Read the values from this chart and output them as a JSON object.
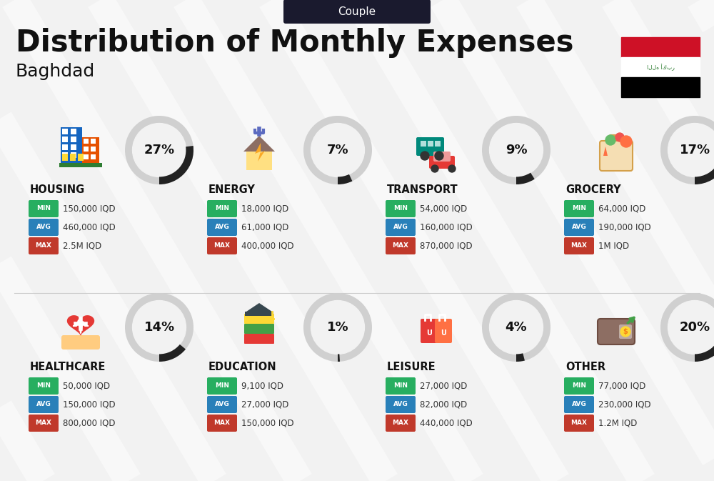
{
  "title": "Distribution of Monthly Expenses",
  "subtitle": "Couple",
  "city": "Baghdad",
  "bg_color": "#f2f2f2",
  "categories": [
    {
      "name": "HOUSING",
      "pct": 27,
      "min": "150,000 IQD",
      "avg": "460,000 IQD",
      "max": "2.5M IQD",
      "row": 0,
      "col": 0
    },
    {
      "name": "ENERGY",
      "pct": 7,
      "min": "18,000 IQD",
      "avg": "61,000 IQD",
      "max": "400,000 IQD",
      "row": 0,
      "col": 1
    },
    {
      "name": "TRANSPORT",
      "pct": 9,
      "min": "54,000 IQD",
      "avg": "160,000 IQD",
      "max": "870,000 IQD",
      "row": 0,
      "col": 2
    },
    {
      "name": "GROCERY",
      "pct": 17,
      "min": "64,000 IQD",
      "avg": "190,000 IQD",
      "max": "1M IQD",
      "row": 0,
      "col": 3
    },
    {
      "name": "HEALTHCARE",
      "pct": 14,
      "min": "50,000 IQD",
      "avg": "150,000 IQD",
      "max": "800,000 IQD",
      "row": 1,
      "col": 0
    },
    {
      "name": "EDUCATION",
      "pct": 1,
      "min": "9,100 IQD",
      "avg": "27,000 IQD",
      "max": "150,000 IQD",
      "row": 1,
      "col": 1
    },
    {
      "name": "LEISURE",
      "pct": 4,
      "min": "27,000 IQD",
      "avg": "82,000 IQD",
      "max": "440,000 IQD",
      "row": 1,
      "col": 2
    },
    {
      "name": "OTHER",
      "pct": 20,
      "min": "77,000 IQD",
      "avg": "230,000 IQD",
      "max": "1.2M IQD",
      "row": 1,
      "col": 3
    }
  ],
  "min_color": "#27ae60",
  "avg_color": "#2980b9",
  "max_color": "#c0392b",
  "title_color": "#111111",
  "category_color": "#111111",
  "pct_color": "#111111",
  "circle_bg": "#d0d0d0",
  "circle_fill": "#f2f2f2",
  "arc_color": "#222222",
  "subtitle_bg": "#1a1a2e",
  "subtitle_fg": "#ffffff",
  "value_color": "#333333",
  "stripe_color": "#ffffff"
}
